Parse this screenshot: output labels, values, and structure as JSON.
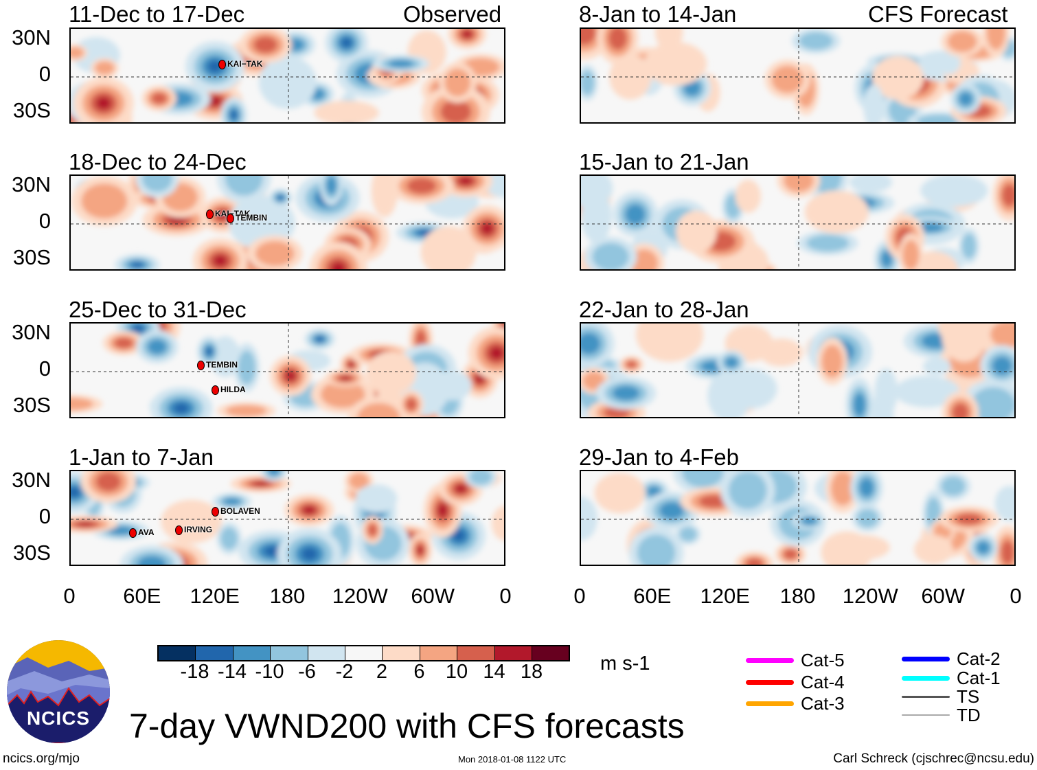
{
  "headers": {
    "observed": "Observed",
    "forecast": "CFS Forecast"
  },
  "panels_left": [
    {
      "title": "11-Dec to 17-Dec",
      "storms": [
        "KAI−TAK"
      ]
    },
    {
      "title": "18-Dec to 24-Dec",
      "storms": [
        "KAI−TAK",
        "TEMBIN"
      ]
    },
    {
      "title": "25-Dec to 31-Dec",
      "storms": [
        "TEMBIN",
        "HILDA"
      ]
    },
    {
      "title": "1-Jan to 7-Jan",
      "storms": [
        "BOLAVEN",
        "AVA",
        "IRVING"
      ]
    }
  ],
  "panels_right": [
    {
      "title": "8-Jan to 14-Jan"
    },
    {
      "title": "15-Jan to 21-Jan"
    },
    {
      "title": "22-Jan to 28-Jan"
    },
    {
      "title": "29-Jan to 4-Feb"
    }
  ],
  "lat_labels": [
    "30N",
    "0",
    "30S"
  ],
  "lon_labels": [
    "0",
    "60E",
    "120E",
    "180",
    "120W",
    "60W",
    "0"
  ],
  "colorbar": {
    "colors": [
      "#053061",
      "#2166ac",
      "#4393c3",
      "#92c5de",
      "#d1e5f0",
      "#f7f7f7",
      "#fddbc7",
      "#f4a582",
      "#d6604d",
      "#b2182b",
      "#67001f"
    ],
    "labels": [
      "-18",
      "-14",
      "-10",
      "-6",
      "-2",
      "2",
      "6",
      "10",
      "14",
      "18"
    ],
    "units": "m s-1"
  },
  "legend": [
    {
      "label": "Cat-5",
      "color": "#ff00ff"
    },
    {
      "label": "Cat-4",
      "color": "#ff0000"
    },
    {
      "label": "Cat-3",
      "color": "#ffa500"
    },
    {
      "label": "Cat-2",
      "color": "#0000ff"
    },
    {
      "label": "Cat-1",
      "color": "#00ffff"
    },
    {
      "label": "TS",
      "color": "#555555"
    },
    {
      "label": "TD",
      "color": "#aaaaaa"
    }
  ],
  "logo_text": "NCICS",
  "main_title": "7-day VWND200 with CFS forecasts",
  "footer": {
    "left": "ncics.org/mjo",
    "center": "Mon 2018-01-08 1122 UTC",
    "right": "Carl Schreck (cjschrec@ncsu.edu)"
  }
}
